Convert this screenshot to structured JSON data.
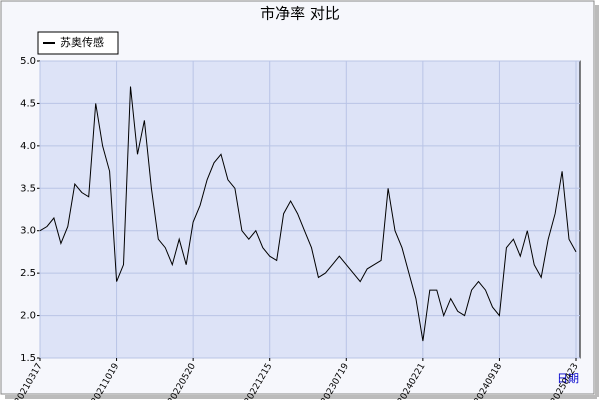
{
  "chart_data": {
    "type": "line",
    "title": "市净率 对比",
    "x_label": "日期",
    "categories": [
      "20210317",
      null,
      null,
      null,
      null,
      null,
      null,
      null,
      null,
      null,
      null,
      "20211019",
      null,
      null,
      null,
      null,
      null,
      null,
      null,
      null,
      null,
      null,
      "20220520",
      null,
      null,
      null,
      null,
      null,
      null,
      null,
      null,
      null,
      null,
      "20221215",
      null,
      null,
      null,
      null,
      null,
      null,
      null,
      null,
      null,
      null,
      "20230719",
      null,
      null,
      null,
      null,
      null,
      null,
      null,
      null,
      null,
      null,
      "20240221",
      null,
      null,
      null,
      null,
      null,
      null,
      null,
      null,
      null,
      null,
      "20240918",
      null,
      null,
      null,
      null,
      null,
      null,
      null,
      null,
      null,
      null,
      "20250423"
    ],
    "series": [
      {
        "name": "苏奥传感",
        "color": "#000000",
        "values": [
          3.0,
          3.05,
          3.15,
          2.85,
          3.05,
          3.55,
          3.45,
          3.4,
          4.5,
          4.0,
          3.7,
          2.4,
          2.6,
          4.7,
          3.9,
          4.3,
          3.5,
          2.9,
          2.8,
          2.6,
          2.9,
          2.6,
          3.1,
          3.3,
          3.6,
          3.8,
          3.9,
          3.6,
          3.5,
          3.0,
          2.9,
          3.0,
          2.8,
          2.7,
          2.65,
          3.2,
          3.35,
          3.2,
          3.0,
          2.8,
          2.45,
          2.5,
          2.6,
          2.7,
          2.6,
          2.5,
          2.4,
          2.55,
          2.6,
          2.65,
          3.5,
          3.0,
          2.8,
          2.5,
          2.2,
          1.7,
          2.3,
          2.3,
          2.0,
          2.2,
          2.05,
          2.0,
          2.3,
          2.4,
          2.3,
          2.1,
          2.0,
          2.8,
          2.9,
          2.7,
          3.0,
          2.6,
          2.45,
          2.9,
          3.2,
          3.7,
          2.9,
          2.75
        ]
      }
    ],
    "ylim": [
      1.5,
      5.0
    ],
    "yticks": [
      {
        "value": 1.5,
        "label": "1.5"
      },
      {
        "value": 2,
        "label": "2.0"
      },
      {
        "value": 2.5,
        "label": "2.5"
      },
      {
        "value": 3,
        "label": "3.0"
      },
      {
        "value": 3.5,
        "label": "3.5"
      },
      {
        "value": 4,
        "label": "4.0"
      },
      {
        "value": 4.5,
        "label": "4.5"
      },
      {
        "value": 5,
        "label": "5.0"
      }
    ],
    "grid": true,
    "legend": "upper left"
  }
}
